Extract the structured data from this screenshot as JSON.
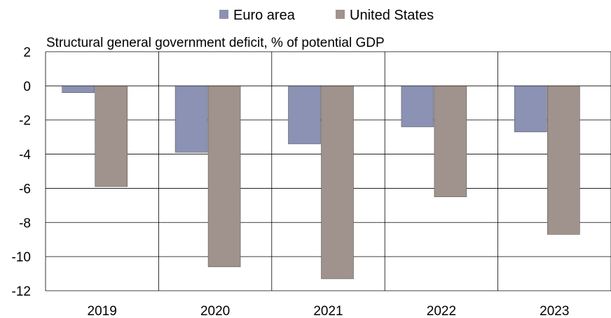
{
  "chart_data": {
    "type": "bar",
    "title": "Structural general government deficit, % of potential GDP",
    "xlabel": "",
    "ylabel": "",
    "categories": [
      "2019",
      "2020",
      "2021",
      "2022",
      "2023"
    ],
    "series": [
      {
        "name": "Euro area",
        "color": "#8c92b4",
        "values": [
          -0.4,
          -3.9,
          -3.4,
          -2.4,
          -2.7
        ]
      },
      {
        "name": "United States",
        "color": "#a0928c",
        "values": [
          -5.9,
          -10.6,
          -11.3,
          -6.5,
          -8.7
        ]
      }
    ],
    "ylim": [
      -12,
      2
    ],
    "yticks": [
      "2",
      "0",
      "-2",
      "-4",
      "-6",
      "-8",
      "-10",
      "-12"
    ],
    "grid": true,
    "legend_position": "top-center"
  }
}
